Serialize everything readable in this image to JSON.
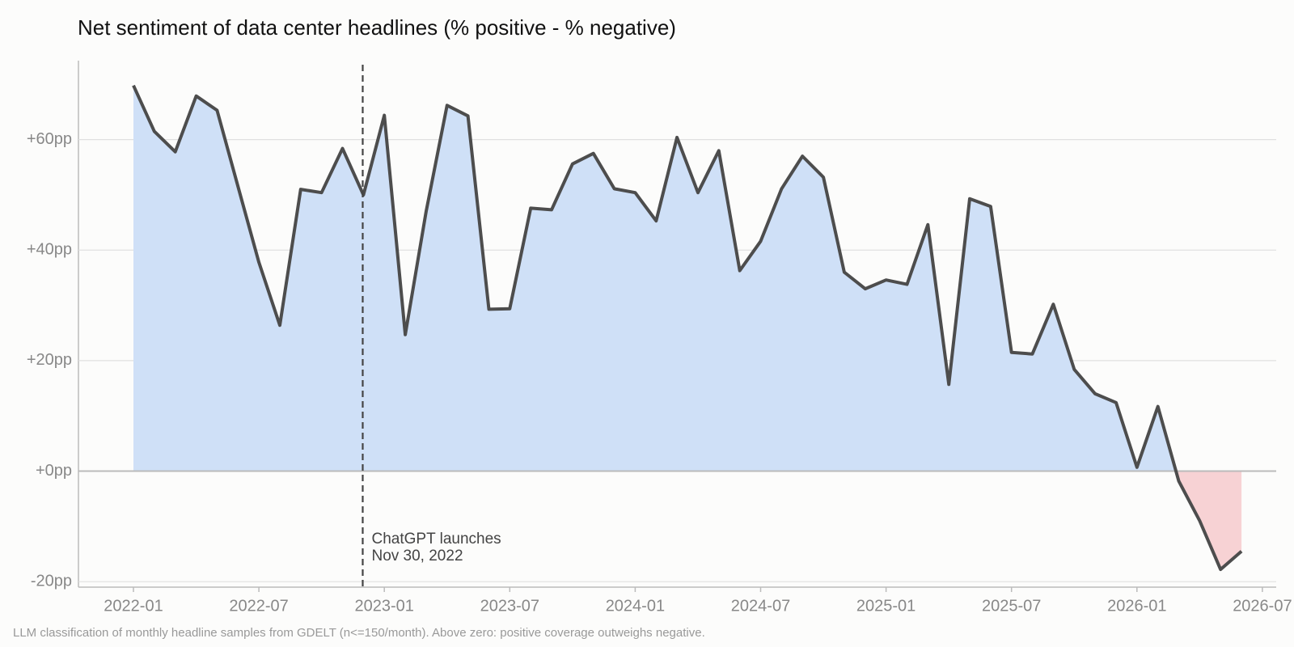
{
  "chart_data": {
    "type": "area",
    "title": "Net sentiment of data center headlines (% positive - % negative)",
    "footnote": "LLM classification of monthly headline samples from GDELT (n<=150/month). Above zero: positive coverage outweighs negative.",
    "x": [
      "2022-01",
      "2022-02",
      "2022-03",
      "2022-04",
      "2022-05",
      "2022-06",
      "2022-07",
      "2022-08",
      "2022-09",
      "2022-10",
      "2022-11",
      "2022-12",
      "2023-01",
      "2023-02",
      "2023-03",
      "2023-04",
      "2023-05",
      "2023-06",
      "2023-07",
      "2023-08",
      "2023-09",
      "2023-10",
      "2023-11",
      "2023-12",
      "2024-01",
      "2024-02",
      "2024-03",
      "2024-04",
      "2024-05",
      "2024-06",
      "2024-07",
      "2024-08",
      "2024-09",
      "2024-10",
      "2024-11",
      "2024-12",
      "2025-01",
      "2025-02",
      "2025-03",
      "2025-04",
      "2025-05",
      "2025-06",
      "2025-07",
      "2025-08",
      "2025-09",
      "2025-10",
      "2025-11",
      "2025-12",
      "2026-01",
      "2026-02",
      "2026-03",
      "2026-04",
      "2026-05",
      "2026-06"
    ],
    "values": [
      69.8,
      61.5,
      57.8,
      67.9,
      65.3,
      51.5,
      37.8,
      26.4,
      51,
      50.4,
      58.4,
      50,
      64.4,
      24.7,
      47,
      66.2,
      64.3,
      29.3,
      29.4,
      47.6,
      47.3,
      55.6,
      57.5,
      51.1,
      50.4,
      45.3,
      60.4,
      50.4,
      58,
      36.3,
      41.6,
      51.1,
      57,
      53.2,
      36,
      33,
      34.6,
      33.8,
      44.6,
      15.7,
      49.3,
      47.9,
      21.5,
      21.2,
      30.2,
      18.4,
      14,
      12.4,
      0.7,
      11.7,
      -1.8,
      -9,
      -17.8,
      -14.5
    ],
    "line_color": "#4d4d4d",
    "positive_color": "#cfe0f7",
    "negative_color": "#f7d2d4",
    "ylim": [
      -21,
      74
    ],
    "yticks": [
      {
        "value": -20,
        "label": "-20pp"
      },
      {
        "value": 0,
        "label": "+0pp"
      },
      {
        "value": 20,
        "label": "+20pp"
      },
      {
        "value": 40,
        "label": "+40pp"
      },
      {
        "value": 60,
        "label": "+60pp"
      }
    ],
    "xticks": [
      "2022-01",
      "2022-07",
      "2023-01",
      "2023-07",
      "2024-01",
      "2024-07",
      "2025-01",
      "2025-07",
      "2026-01",
      "2026-07"
    ],
    "grid": true,
    "annotation": {
      "x": "2022-11-30",
      "lines": [
        "ChatGPT launches",
        "Nov 30, 2022"
      ]
    }
  }
}
